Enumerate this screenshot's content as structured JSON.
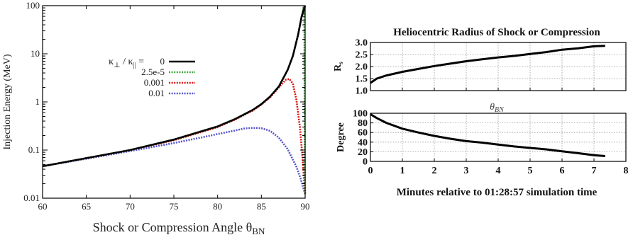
{
  "chart_data": [
    {
      "type": "line",
      "ylabel": "Injection Energy (MeV)",
      "xlabel": "Shock or Compression Angle  θ",
      "xlabel_sub": "BN",
      "xlim": [
        60,
        90
      ],
      "ylim": [
        0.01,
        100
      ],
      "yscale": "log",
      "xticks": [
        "60",
        "65",
        "70",
        "75",
        "80",
        "85",
        "90"
      ],
      "yticks": [
        "0.01",
        "0.1",
        "1",
        "10",
        "100"
      ],
      "grid": false,
      "legend": {
        "title_main": "κ",
        "title_sub1": "⊥",
        "title_mid": " / κ",
        "title_sub2": "||",
        "title_end": " =",
        "placement": "upper-middle"
      },
      "series": [
        {
          "name": "0",
          "color": "#000000",
          "style": "solid",
          "x": [
            60,
            65,
            70,
            75,
            80,
            82,
            84,
            85,
            86,
            87,
            88,
            88.6,
            89.2,
            89.6,
            90
          ],
          "y": [
            0.046,
            0.068,
            0.1,
            0.165,
            0.31,
            0.44,
            0.68,
            0.9,
            1.3,
            2.1,
            4.6,
            9,
            25,
            60,
            100
          ]
        },
        {
          "name": "2.5e-5",
          "color": "#3aa53a",
          "style": "dotted",
          "x": [
            60,
            65,
            70,
            75,
            80,
            82,
            84,
            85,
            86,
            87,
            88,
            88.6,
            89.2,
            89.6,
            89.9,
            89.95,
            90
          ],
          "y": [
            0.046,
            0.068,
            0.1,
            0.165,
            0.31,
            0.44,
            0.68,
            0.9,
            1.3,
            2.1,
            4.6,
            9,
            25,
            60,
            100,
            0.1,
            0.012
          ]
        },
        {
          "name": "0.001",
          "color": "#dd1111",
          "style": "dotted",
          "x": [
            60,
            65,
            70,
            75,
            80,
            82,
            84,
            85,
            86,
            87,
            87.8,
            88.2,
            88.6,
            89,
            89.4,
            89.7,
            90
          ],
          "y": [
            0.046,
            0.068,
            0.1,
            0.16,
            0.3,
            0.43,
            0.66,
            0.88,
            1.25,
            2.0,
            2.9,
            3.0,
            2.4,
            1.1,
            0.3,
            0.07,
            0.012
          ]
        },
        {
          "name": "0.01",
          "color": "#5555cc",
          "style": "dotted",
          "x": [
            60,
            65,
            70,
            75,
            78,
            80,
            82,
            83,
            84,
            85,
            86,
            87,
            88,
            89,
            89.5,
            90
          ],
          "y": [
            0.046,
            0.066,
            0.095,
            0.14,
            0.18,
            0.215,
            0.255,
            0.28,
            0.29,
            0.285,
            0.25,
            0.18,
            0.105,
            0.045,
            0.025,
            0.012
          ]
        }
      ]
    },
    {
      "type": "line",
      "title": "Heliocentric Radius of Shock or Compression",
      "ylabel": "R",
      "ylabel_sub": "s",
      "xlim": [
        0,
        8
      ],
      "ylim": [
        1.0,
        3.0
      ],
      "yticks": [
        "1.0",
        "1.5",
        "2.0",
        "2.5",
        "3.0"
      ],
      "grid": true,
      "series": [
        {
          "color": "#000000",
          "x": [
            0,
            0.2,
            0.5,
            1,
            1.5,
            2,
            2.5,
            3,
            3.5,
            4,
            4.5,
            5,
            5.5,
            6,
            6.5,
            7,
            7.35
          ],
          "y": [
            1.32,
            1.5,
            1.63,
            1.78,
            1.9,
            2.02,
            2.12,
            2.22,
            2.3,
            2.38,
            2.44,
            2.52,
            2.6,
            2.7,
            2.76,
            2.84,
            2.86
          ]
        }
      ]
    },
    {
      "type": "line",
      "title": "θ",
      "title_sub": "BN",
      "ylabel": "Degree",
      "xlabel": "Minutes relative to 01:28:57 simulation time",
      "xlim": [
        0,
        8
      ],
      "ylim": [
        0,
        100
      ],
      "xticks": [
        "0",
        "1",
        "2",
        "3",
        "4",
        "5",
        "6",
        "7",
        "8"
      ],
      "yticks": [
        "0",
        "20",
        "40",
        "60",
        "80",
        "100"
      ],
      "grid": true,
      "series": [
        {
          "color": "#000000",
          "x": [
            0,
            0.2,
            0.5,
            1,
            1.5,
            2,
            2.5,
            3,
            3.5,
            4,
            4.5,
            5,
            5.5,
            6,
            6.5,
            7,
            7.35
          ],
          "y": [
            98,
            90,
            80,
            68,
            60,
            53,
            47,
            42,
            39,
            35,
            31,
            28,
            25,
            21,
            17,
            13,
            11
          ]
        }
      ]
    }
  ]
}
